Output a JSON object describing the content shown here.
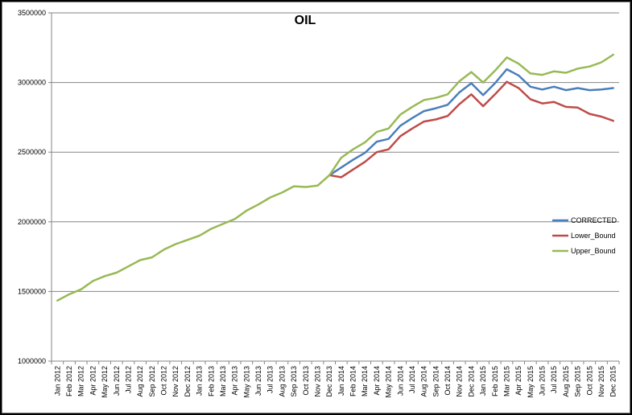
{
  "chart_data": {
    "type": "line",
    "title": "OIL",
    "xlabel": "",
    "ylabel": "",
    "ylim": [
      1000000,
      3500000
    ],
    "y_ticks": [
      1000000,
      1500000,
      2000000,
      2500000,
      3000000,
      3500000
    ],
    "y_tick_labels": [
      "1000000",
      "1500000",
      "2000000",
      "2500000",
      "3000000",
      "3500000"
    ],
    "grid": "horizontal",
    "legend_position": "right",
    "categories": [
      "Jan 2012",
      "Feb 2012",
      "Mar 2012",
      "Apr 2012",
      "May 2012",
      "Jun 2012",
      "Jul 2012",
      "Aug 2012",
      "Sep 2012",
      "Oct 2012",
      "Nov 2012",
      "Dec 2012",
      "Jan 2013",
      "Feb 2013",
      "Mar 2013",
      "Apr 2013",
      "May 2013",
      "Jun 2013",
      "Jul 2013",
      "Aug 2013",
      "Sep 2013",
      "Oct 2013",
      "Nov 2013",
      "Dec 2013",
      "Jan 2014",
      "Feb 2014",
      "Mar 2014",
      "Apr 2014",
      "May 2014",
      "Jun 2014",
      "Jul 2014",
      "Aug 2014",
      "Sep 2014",
      "Oct 2014",
      "Nov 2014",
      "Dec 2014",
      "Jan 2015",
      "Feb 2015",
      "Mar 2015",
      "Apr 2015",
      "May 2015",
      "Jun 2015",
      "Jul 2015",
      "Aug 2015",
      "Sep 2015",
      "Oct 2015",
      "Nov 2015",
      "Dec 2015"
    ],
    "series": [
      {
        "name": "CORRECTED",
        "color": "#4a7ebb",
        "values": [
          null,
          null,
          null,
          null,
          null,
          null,
          null,
          null,
          null,
          null,
          null,
          null,
          null,
          null,
          null,
          null,
          null,
          null,
          null,
          null,
          null,
          null,
          null,
          2335000,
          2390000,
          2445000,
          2495000,
          2575000,
          2595000,
          2690000,
          2745000,
          2795000,
          2815000,
          2840000,
          2930000,
          2995000,
          2910000,
          2995000,
          3095000,
          3050000,
          2970000,
          2950000,
          2970000,
          2945000,
          2960000,
          2945000,
          2950000,
          2960000
        ]
      },
      {
        "name": "Lower_Bound",
        "color": "#be4b48",
        "values": [
          null,
          null,
          null,
          null,
          null,
          null,
          null,
          null,
          null,
          null,
          null,
          null,
          null,
          null,
          null,
          null,
          null,
          null,
          null,
          null,
          null,
          null,
          null,
          2335000,
          2320000,
          2375000,
          2430000,
          2500000,
          2520000,
          2615000,
          2670000,
          2720000,
          2735000,
          2760000,
          2845000,
          2915000,
          2830000,
          2915000,
          3005000,
          2960000,
          2880000,
          2850000,
          2860000,
          2825000,
          2820000,
          2775000,
          2755000,
          2725000
        ]
      },
      {
        "name": "Upper_Bound",
        "color": "#98b954",
        "values": [
          1435000,
          1480000,
          1515000,
          1575000,
          1610000,
          1635000,
          1680000,
          1725000,
          1745000,
          1800000,
          1840000,
          1870000,
          1900000,
          1950000,
          1985000,
          2020000,
          2080000,
          2125000,
          2175000,
          2210000,
          2255000,
          2250000,
          2260000,
          2335000,
          2460000,
          2520000,
          2570000,
          2645000,
          2670000,
          2770000,
          2825000,
          2875000,
          2890000,
          2915000,
          3010000,
          3075000,
          3000000,
          3085000,
          3180000,
          3135000,
          3065000,
          3055000,
          3080000,
          3070000,
          3100000,
          3115000,
          3145000,
          3200000
        ]
      }
    ]
  }
}
